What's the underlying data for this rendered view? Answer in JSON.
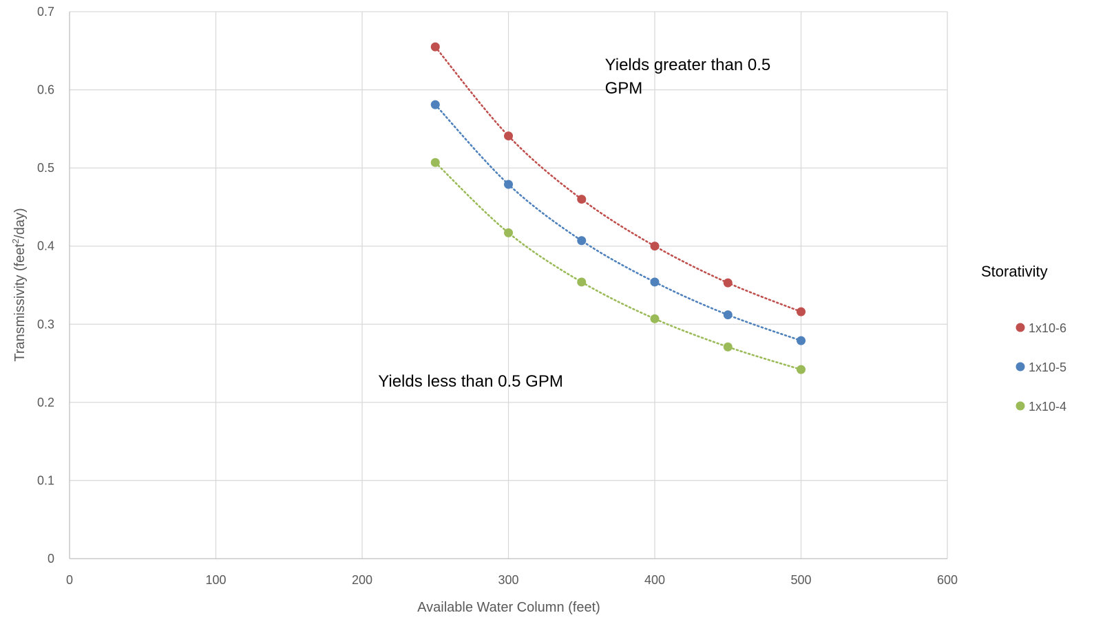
{
  "chart_data": {
    "type": "scatter",
    "xlabel": "Available Water Column (feet)",
    "ylabel_main": "Transmissivity (feet",
    "ylabel_sup": "2",
    "ylabel_tail": "/day)",
    "xlim": [
      0,
      600
    ],
    "ylim": [
      0,
      0.7
    ],
    "x_ticks": [
      0,
      100,
      200,
      300,
      400,
      500,
      600
    ],
    "y_ticks": [
      0,
      0.1,
      0.2,
      0.3,
      0.4,
      0.5,
      0.6,
      0.7
    ],
    "x_tick_labels": [
      "0",
      "100",
      "200",
      "300",
      "400",
      "500",
      "600"
    ],
    "y_tick_labels": [
      "0",
      "0.1",
      "0.2",
      "0.3",
      "0.4",
      "0.5",
      "0.6",
      "0.7"
    ],
    "grid": true,
    "trendline": "dotted",
    "legend_title": "Storativity",
    "legend_position": "right",
    "annotations": [
      {
        "lines": [
          "Yields greater than 0.5",
          "GPM"
        ],
        "x": 365,
        "y": 0.625
      },
      {
        "lines": [
          "Yields less than 0.5 GPM"
        ],
        "x": 210,
        "y": 0.22
      }
    ],
    "series": [
      {
        "name": "1x10-6",
        "color": "#c0504d",
        "x": [
          250,
          300,
          350,
          400,
          450,
          500
        ],
        "y": [
          0.655,
          0.541,
          0.46,
          0.4,
          0.353,
          0.316
        ]
      },
      {
        "name": "1x10-5",
        "color": "#4f81bd",
        "x": [
          250,
          300,
          350,
          400,
          450,
          500
        ],
        "y": [
          0.581,
          0.479,
          0.407,
          0.354,
          0.312,
          0.279
        ]
      },
      {
        "name": "1x10-4",
        "color": "#9bbb59",
        "x": [
          250,
          300,
          350,
          400,
          450,
          500
        ],
        "y": [
          0.507,
          0.417,
          0.354,
          0.307,
          0.271,
          0.242
        ]
      }
    ]
  }
}
